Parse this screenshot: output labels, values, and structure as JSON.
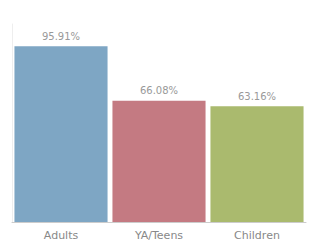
{
  "chart_data": {
    "type": "bar",
    "categories": [
      "Adults",
      "YA/Teens",
      "Children"
    ],
    "values": [
      95.91,
      66.08,
      63.16
    ],
    "value_labels": [
      "95.91%",
      "66.08%",
      "63.16%"
    ],
    "colors": [
      "#7EA6C4",
      "#C47A82",
      "#AABA6E"
    ],
    "ylim": [
      0,
      108
    ],
    "grid": false,
    "tick_labels": "x",
    "data_labels": true
  }
}
